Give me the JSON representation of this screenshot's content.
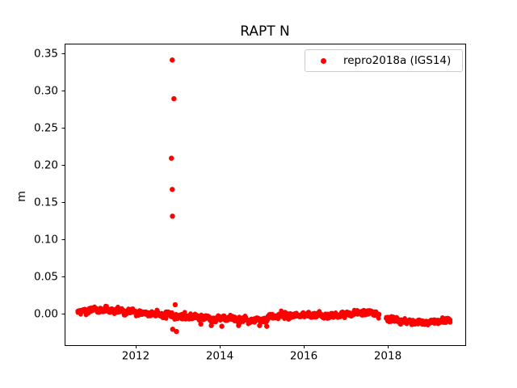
{
  "chart_data": {
    "type": "scatter",
    "title": "RAPT N",
    "xlabel": "",
    "ylabel": "m",
    "grid": false,
    "xlim": [
      2010.308,
      2019.846
    ],
    "ylim": [
      -0.0424,
      0.363
    ],
    "x_ticks": [
      2012,
      2014,
      2016,
      2018
    ],
    "x_tick_labels": [
      "2012",
      "2014",
      "2016",
      "2018"
    ],
    "y_ticks": [
      0.0,
      0.05,
      0.1,
      0.15,
      0.2,
      0.25,
      0.3,
      0.35
    ],
    "y_tick_labels": [
      "0.00",
      "0.05",
      "0.10",
      "0.15",
      "0.20",
      "0.25",
      "0.30",
      "0.35"
    ],
    "legend": {
      "position": "upper right",
      "entries": [
        {
          "label": "repro2018a (IGS14)",
          "color": "#ff0000",
          "marker": "dot"
        }
      ]
    },
    "series": [
      {
        "name": "repro2018a (IGS14)",
        "color": "#ff0000",
        "marker": "dot",
        "band": {
          "description": "dense daily scatter band near 0 m",
          "start": 2010.62,
          "end": 2019.5,
          "step_years": 0.005,
          "noise_std_m": 0.0016,
          "gaps": [
            [
              2017.8,
              2017.96
            ]
          ],
          "centerline": [
            [
              2010.62,
              0.001
            ],
            [
              2010.8,
              0.004
            ],
            [
              2011.0,
              0.005
            ],
            [
              2011.25,
              0.005
            ],
            [
              2011.5,
              0.004
            ],
            [
              2011.75,
              0.003
            ],
            [
              2012.0,
              0.002
            ],
            [
              2012.3,
              0.0
            ],
            [
              2012.6,
              -0.001
            ],
            [
              2012.87,
              -0.002
            ],
            [
              2013.0,
              -0.005
            ],
            [
              2013.3,
              -0.004
            ],
            [
              2013.6,
              -0.0055
            ],
            [
              2013.9,
              -0.007
            ],
            [
              2014.15,
              -0.006
            ],
            [
              2014.5,
              -0.0085
            ],
            [
              2014.8,
              -0.0095
            ],
            [
              2015.1,
              -0.008
            ],
            [
              2015.25,
              -0.004
            ],
            [
              2015.5,
              -0.002
            ],
            [
              2015.75,
              -0.003
            ],
            [
              2016.0,
              -0.001
            ],
            [
              2016.3,
              -0.002
            ],
            [
              2016.6,
              -0.003
            ],
            [
              2016.9,
              -0.001
            ],
            [
              2017.15,
              0.0
            ],
            [
              2017.4,
              0.002
            ],
            [
              2017.65,
              0.001
            ],
            [
              2017.8,
              -0.001
            ],
            [
              2017.97,
              -0.006
            ],
            [
              2018.2,
              -0.009
            ],
            [
              2018.5,
              -0.011
            ],
            [
              2018.8,
              -0.012
            ],
            [
              2019.05,
              -0.011
            ],
            [
              2019.3,
              -0.01
            ],
            [
              2019.5,
              -0.009
            ]
          ]
        },
        "outliers": [
          [
            2012.85,
            0.209
          ],
          [
            2012.87,
            0.341
          ],
          [
            2012.87,
            0.167
          ],
          [
            2012.875,
            0.131
          ],
          [
            2012.91,
            0.289
          ],
          [
            2012.94,
            0.012
          ],
          [
            2012.88,
            -0.021
          ],
          [
            2012.97,
            -0.024
          ],
          [
            2013.55,
            -0.014
          ],
          [
            2013.8,
            -0.016
          ],
          [
            2014.05,
            -0.017
          ],
          [
            2014.45,
            -0.016
          ],
          [
            2014.95,
            -0.016
          ],
          [
            2015.12,
            -0.017
          ]
        ]
      }
    ]
  }
}
